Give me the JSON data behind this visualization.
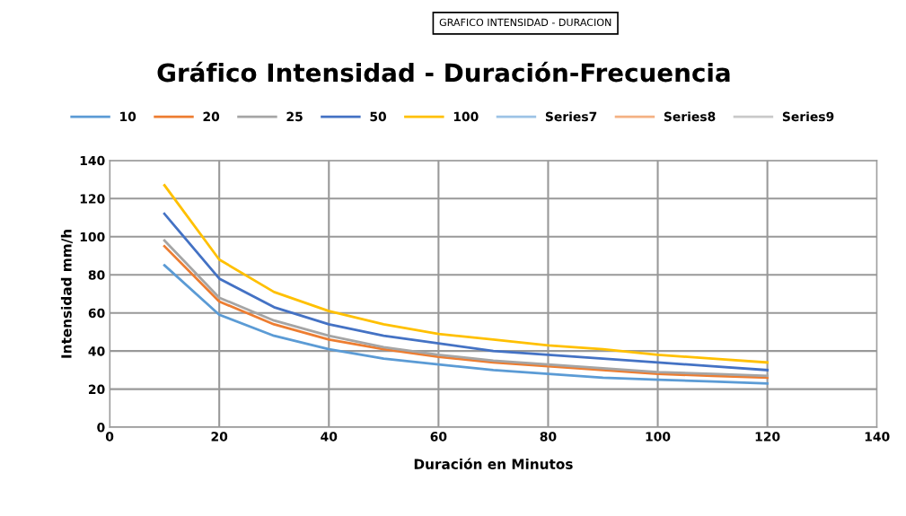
{
  "chart_data": {
    "type": "line",
    "title": "Gráfico Intensidad - Duración-Frecuencia",
    "xlabel": "Duración en Minutos",
    "ylabel": "Intensidad mm/h",
    "annotations": [
      "GRAFICO INTENSIDAD - DURACION"
    ],
    "x": [
      10,
      20,
      30,
      40,
      50,
      60,
      70,
      80,
      90,
      100,
      110,
      120
    ],
    "series": [
      {
        "name": "10",
        "color": "#5b9bd5",
        "values": [
          85,
          59,
          48,
          41,
          36,
          33,
          30,
          28,
          26,
          25,
          24,
          23
        ]
      },
      {
        "name": "20",
        "color": "#ed7d31",
        "values": [
          95,
          66,
          54,
          46,
          41,
          37,
          34,
          32,
          30,
          28,
          27,
          26
        ]
      },
      {
        "name": "25",
        "color": "#a5a5a5",
        "values": [
          98,
          68,
          56,
          48,
          42,
          38,
          35,
          33,
          31,
          29,
          28,
          27
        ]
      },
      {
        "name": "50",
        "color": "#4472c4",
        "values": [
          112,
          78,
          63,
          54,
          48,
          44,
          40,
          38,
          36,
          34,
          32,
          30
        ]
      },
      {
        "name": "100",
        "color": "#ffc000",
        "values": [
          127,
          88,
          71,
          61,
          54,
          49,
          46,
          43,
          41,
          38,
          36,
          34
        ]
      },
      {
        "name": "Series7",
        "color": "#9dc3e6",
        "values": [
          null,
          null,
          null,
          null,
          null,
          null,
          null,
          null,
          null,
          null,
          null,
          null
        ]
      },
      {
        "name": "Series8",
        "color": "#f4b183",
        "values": [
          null,
          null,
          null,
          null,
          null,
          null,
          null,
          null,
          null,
          null,
          null,
          null
        ]
      },
      {
        "name": "Series9",
        "color": "#c9c9c9",
        "values": [
          null,
          null,
          null,
          null,
          null,
          null,
          null,
          null,
          null,
          null,
          null,
          null
        ]
      }
    ],
    "xlim": [
      0,
      140
    ],
    "xticks": [
      0,
      20,
      40,
      60,
      80,
      100,
      120,
      140
    ],
    "ylim": [
      0,
      140
    ],
    "yticks": [
      0,
      20,
      40,
      60,
      80,
      100,
      120,
      140
    ],
    "grid": true,
    "legend": "top",
    "marker": "none",
    "line_style": "solid"
  }
}
